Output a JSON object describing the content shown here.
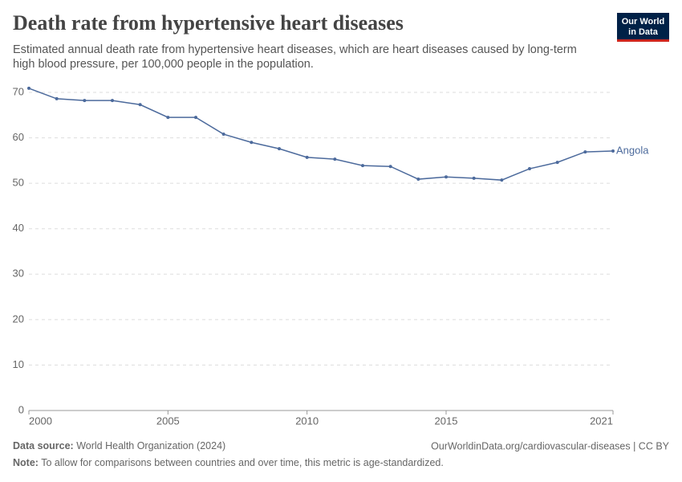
{
  "chart_data": {
    "type": "line",
    "title": "Death rate from hypertensive heart diseases",
    "subtitle": [
      "Estimated annual death rate from hypertensive heart diseases, which are heart diseases caused by long-term",
      "high blood pressure, per 100,000 people in the population."
    ],
    "x": [
      2000,
      2001,
      2002,
      2003,
      2004,
      2005,
      2006,
      2007,
      2008,
      2009,
      2010,
      2011,
      2012,
      2013,
      2014,
      2015,
      2016,
      2017,
      2018,
      2019,
      2020,
      2021
    ],
    "series": [
      {
        "name": "Angola",
        "color": "#4c6a9c",
        "values": [
          70.9,
          68.6,
          68.2,
          68.2,
          67.3,
          64.5,
          64.5,
          60.8,
          59.0,
          57.6,
          55.7,
          55.3,
          53.9,
          53.7,
          50.9,
          51.4,
          51.1,
          50.7,
          53.2,
          54.6,
          56.9,
          57.1
        ]
      }
    ],
    "xlim": [
      2000,
      2021
    ],
    "xticks": [
      2000,
      2005,
      2010,
      2015,
      2021
    ],
    "ylim": [
      0,
      70
    ],
    "yticks": [
      0,
      10,
      20,
      30,
      40,
      50,
      60,
      70
    ],
    "grid": true
  },
  "logo": [
    "Our World",
    "in Data"
  ],
  "footer": {
    "source_label": "Data source:",
    "source": "World Health Organization (2024)",
    "url": "OurWorldinData.org/cardiovascular-diseases | CC BY",
    "note_label": "Note:",
    "note": "To allow for comparisons between countries and over time, this metric is age-standardized."
  }
}
